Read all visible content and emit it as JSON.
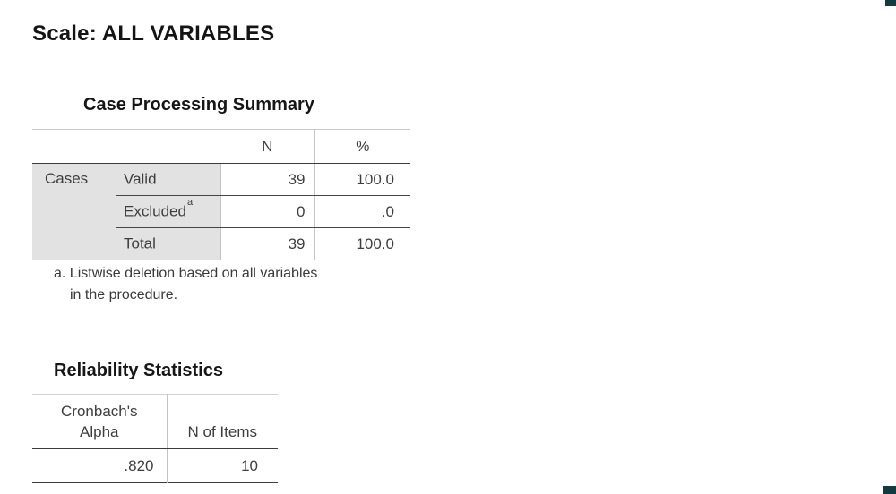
{
  "scale": {
    "title": "Scale: ALL VARIABLES"
  },
  "case_processing": {
    "title": "Case Processing Summary",
    "columns": [
      "N",
      "%"
    ],
    "stub_label": "Cases",
    "rows": [
      {
        "label": "Valid",
        "sup": "",
        "n": "39",
        "pct": "100.0"
      },
      {
        "label": "Excluded",
        "sup": "a",
        "n": "0",
        "pct": ".0"
      },
      {
        "label": "Total",
        "sup": "",
        "n": "39",
        "pct": "100.0"
      }
    ],
    "footnote": "a. Listwise deletion based on all variables in the procedure."
  },
  "reliability": {
    "title": "Reliability Statistics",
    "columns": [
      "Cronbach's Alpha",
      "N of Items"
    ],
    "cronbachs_alpha": ".820",
    "n_of_items": "10"
  },
  "colors": {
    "stub_shading": "#e2e2e2",
    "rule_dark": "#3c3c3c",
    "rule_light": "#c4c4c4",
    "heading_text": "#141414",
    "table_text": "#3e3e3e",
    "corner_artifact": "#113b3e"
  }
}
